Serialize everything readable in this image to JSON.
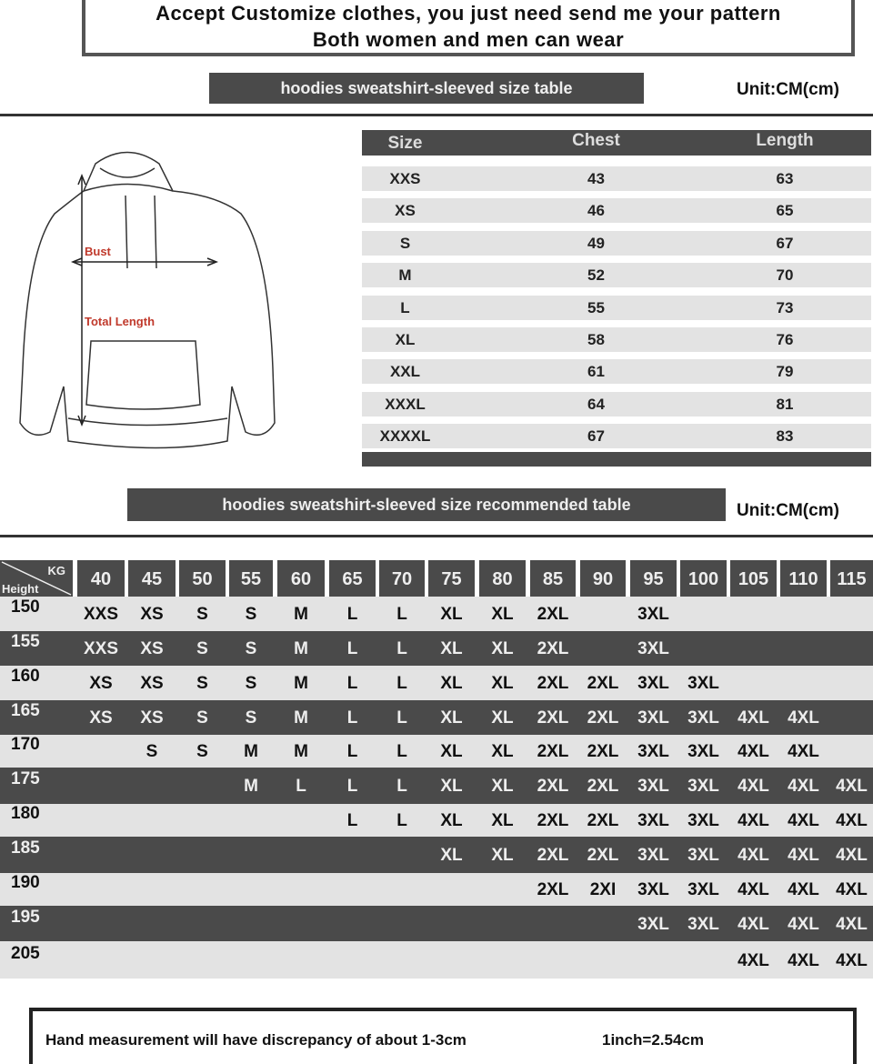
{
  "header": {
    "line1": "Accept Customize clothes, you just need send me your pattern",
    "line2": "Both women and men can wear"
  },
  "size_table": {
    "banner": "hoodies sweatshirt-sleeved size  table",
    "unit": "Unit:CM(cm)",
    "columns": [
      "Size",
      "Chest",
      "Length"
    ],
    "rows": [
      [
        "XXS",
        "43",
        "63"
      ],
      [
        "XS",
        "46",
        "65"
      ],
      [
        "S",
        "49",
        "67"
      ],
      [
        "M",
        "52",
        "70"
      ],
      [
        "L",
        "55",
        "73"
      ],
      [
        "XL",
        "58",
        "76"
      ],
      [
        "XXL",
        "61",
        "79"
      ],
      [
        "XXXL",
        "64",
        "81"
      ],
      [
        "XXXXL",
        "67",
        "83"
      ]
    ]
  },
  "diagram": {
    "bust_label": "Bust",
    "length_label": "Total Length",
    "label_color": "#c0392b"
  },
  "recommend_table": {
    "banner": "hoodies sweatshirt-sleeved size recommended table",
    "unit": "Unit:CM(cm)",
    "corner_kg": "KG",
    "corner_height": "Height",
    "weights": [
      "40",
      "45",
      "50",
      "55",
      "60",
      "65",
      "70",
      "75",
      "80",
      "85",
      "90",
      "95",
      "100",
      "105",
      "110",
      "115"
    ],
    "rows": [
      {
        "height": "150",
        "sizes": [
          "XXS",
          "XS",
          "S",
          "S",
          "M",
          "L",
          "L",
          "XL",
          "XL",
          "2XL",
          "",
          "3XL",
          "",
          "",
          "",
          ""
        ]
      },
      {
        "height": "155",
        "sizes": [
          "XXS",
          "XS",
          "S",
          "S",
          "M",
          "L",
          "L",
          "XL",
          "XL",
          "2XL",
          "",
          "3XL",
          "",
          "",
          "",
          ""
        ]
      },
      {
        "height": "160",
        "sizes": [
          "XS",
          "XS",
          "S",
          "S",
          "M",
          "L",
          "L",
          "XL",
          "XL",
          "2XL",
          "2XL",
          "3XL",
          "3XL",
          "",
          "",
          ""
        ]
      },
      {
        "height": "165",
        "sizes": [
          "XS",
          "XS",
          "S",
          "S",
          "M",
          "L",
          "L",
          "XL",
          "XL",
          "2XL",
          "2XL",
          "3XL",
          "3XL",
          "4XL",
          "4XL",
          ""
        ]
      },
      {
        "height": "170",
        "sizes": [
          "",
          "S",
          "S",
          "M",
          "M",
          "L",
          "L",
          "XL",
          "XL",
          "2XL",
          "2XL",
          "3XL",
          "3XL",
          "4XL",
          "4XL",
          ""
        ]
      },
      {
        "height": "175",
        "sizes": [
          "",
          "",
          "",
          "M",
          "L",
          "L",
          "L",
          "XL",
          "XL",
          "2XL",
          "2XL",
          "3XL",
          "3XL",
          "4XL",
          "4XL",
          "4XL"
        ]
      },
      {
        "height": "180",
        "sizes": [
          "",
          "",
          "",
          "",
          "",
          "L",
          "L",
          "XL",
          "XL",
          "2XL",
          "2XL",
          "3XL",
          "3XL",
          "4XL",
          "4XL",
          "4XL"
        ]
      },
      {
        "height": "185",
        "sizes": [
          "",
          "",
          "",
          "",
          "",
          "",
          "",
          "XL",
          "XL",
          "2XL",
          "2XL",
          "3XL",
          "3XL",
          "4XL",
          "4XL",
          "4XL"
        ]
      },
      {
        "height": "190",
        "sizes": [
          "",
          "",
          "",
          "",
          "",
          "",
          "",
          "",
          "",
          "2XL",
          "2XI",
          "3XL",
          "3XL",
          "4XL",
          "4XL",
          "4XL"
        ]
      },
      {
        "height": "195",
        "sizes": [
          "",
          "",
          "",
          "",
          "",
          "",
          "",
          "",
          "",
          "",
          "",
          "3XL",
          "3XL",
          "4XL",
          "4XL",
          "4XL"
        ]
      },
      {
        "height": "205",
        "sizes": [
          "",
          "",
          "",
          "",
          "",
          "",
          "",
          "",
          "",
          "",
          "",
          "",
          "",
          "4XL",
          "4XL",
          "4XL"
        ]
      }
    ]
  },
  "footer": {
    "note": "Hand measurement will have discrepancy of about  1-3cm",
    "conversion": "1inch=2.54cm"
  }
}
